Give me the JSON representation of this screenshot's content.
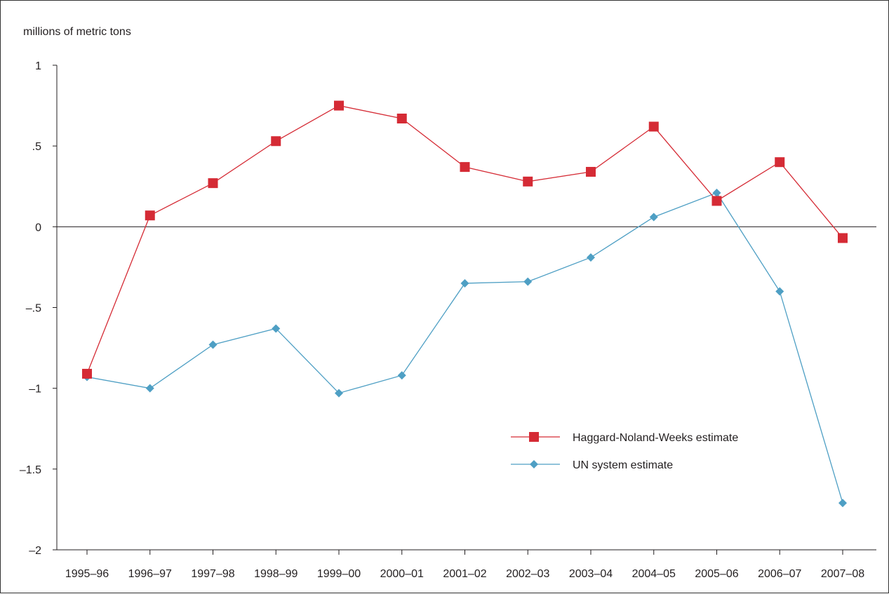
{
  "chart_data": {
    "type": "line",
    "ylabel": "millions of metric tons",
    "ylim": [
      -2,
      1
    ],
    "yticks": [
      {
        "value": 1,
        "label": "1"
      },
      {
        "value": 0.5,
        "label": ".5"
      },
      {
        "value": 0,
        "label": "0"
      },
      {
        "value": -0.5,
        "label": "–.5"
      },
      {
        "value": -1,
        "label": "–1"
      },
      {
        "value": -1.5,
        "label": "–1.5"
      },
      {
        "value": -2,
        "label": "–2"
      }
    ],
    "categories": [
      "1995‒96",
      "1996‒97",
      "1997‒98",
      "1998‒99",
      "1999‒00",
      "2000‒01",
      "2001‒02",
      "2002‒03",
      "2003‒04",
      "2004‒05",
      "2005‒06",
      "2006‒07",
      "2007‒08"
    ],
    "grid": false,
    "zero_line": true,
    "legend_position": "lower-right",
    "series": [
      {
        "name": "Haggard-Noland-Weeks estimate",
        "color": "#d52b35",
        "marker": "square",
        "values": [
          -0.91,
          0.07,
          0.27,
          0.53,
          0.75,
          0.67,
          0.37,
          0.28,
          0.34,
          0.62,
          0.16,
          0.4,
          -0.07
        ]
      },
      {
        "name": "UN system estimate",
        "color": "#4e9fc4",
        "marker": "diamond",
        "values": [
          -0.93,
          -1.0,
          -0.73,
          -0.63,
          -1.03,
          -0.92,
          -0.35,
          -0.34,
          -0.19,
          0.06,
          0.21,
          -0.4,
          -1.71
        ]
      }
    ]
  }
}
